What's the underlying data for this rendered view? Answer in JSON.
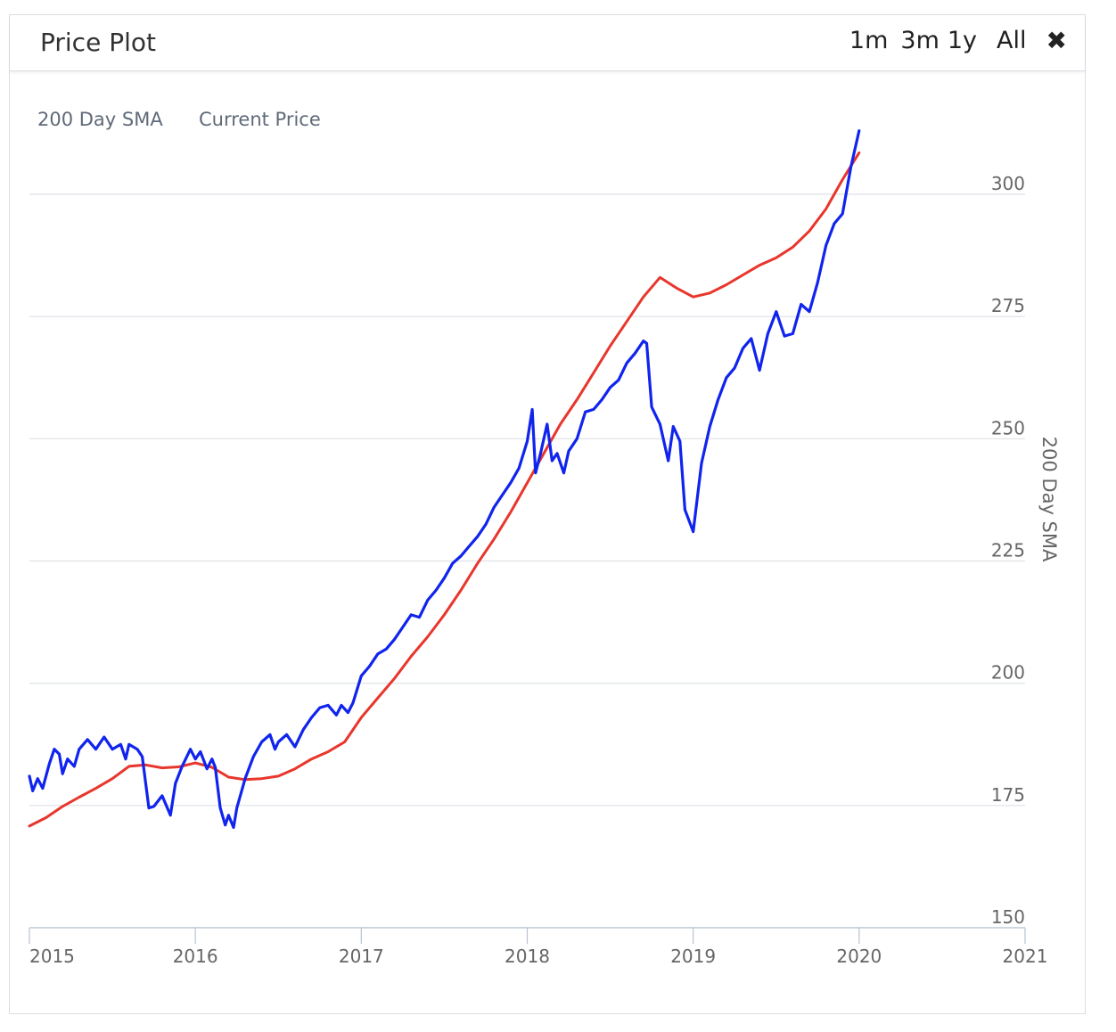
{
  "header": {
    "title": "Price Plot",
    "ranges": [
      "1m",
      "3m",
      "1y",
      "All"
    ],
    "close_icon": "close-icon"
  },
  "chart_data": {
    "type": "line",
    "xlim": [
      2015,
      2021
    ],
    "ylim": [
      150,
      315
    ],
    "y_ticks": [
      "150",
      "175",
      "200",
      "225",
      "250",
      "275",
      "300"
    ],
    "x_ticks": [
      "2015",
      "2016",
      "2017",
      "2018",
      "2019",
      "2020",
      "2021"
    ],
    "ylabel": "200 Day SMA",
    "legend_placement": "top-left",
    "grid": true,
    "series": [
      {
        "name": "200 Day SMA",
        "color": "#e8362c",
        "points": [
          [
            2015.0,
            170.8
          ],
          [
            2015.1,
            172.5
          ],
          [
            2015.2,
            174.8
          ],
          [
            2015.3,
            176.7
          ],
          [
            2015.4,
            178.5
          ],
          [
            2015.5,
            180.5
          ],
          [
            2015.6,
            183.0
          ],
          [
            2015.7,
            183.3
          ],
          [
            2015.8,
            182.7
          ],
          [
            2015.9,
            182.9
          ],
          [
            2016.0,
            183.7
          ],
          [
            2016.1,
            182.8
          ],
          [
            2016.2,
            180.8
          ],
          [
            2016.3,
            180.3
          ],
          [
            2016.4,
            180.5
          ],
          [
            2016.5,
            181.0
          ],
          [
            2016.6,
            182.5
          ],
          [
            2016.7,
            184.5
          ],
          [
            2016.8,
            186.0
          ],
          [
            2016.9,
            188.0
          ],
          [
            2017.0,
            193.0
          ],
          [
            2017.1,
            197.0
          ],
          [
            2017.2,
            201.0
          ],
          [
            2017.3,
            205.5
          ],
          [
            2017.4,
            209.5
          ],
          [
            2017.5,
            214.0
          ],
          [
            2017.6,
            219.0
          ],
          [
            2017.7,
            224.5
          ],
          [
            2017.8,
            229.5
          ],
          [
            2017.9,
            235.0
          ],
          [
            2018.0,
            241.0
          ],
          [
            2018.1,
            247.0
          ],
          [
            2018.2,
            253.0
          ],
          [
            2018.3,
            258.0
          ],
          [
            2018.4,
            263.5
          ],
          [
            2018.5,
            269.0
          ],
          [
            2018.6,
            274.0
          ],
          [
            2018.7,
            279.0
          ],
          [
            2018.8,
            283.0
          ],
          [
            2018.9,
            280.8
          ],
          [
            2019.0,
            279.0
          ],
          [
            2019.1,
            279.8
          ],
          [
            2019.2,
            281.5
          ],
          [
            2019.3,
            283.5
          ],
          [
            2019.4,
            285.5
          ],
          [
            2019.5,
            287.0
          ],
          [
            2019.6,
            289.2
          ],
          [
            2019.7,
            292.5
          ],
          [
            2019.8,
            297.0
          ],
          [
            2019.9,
            303.0
          ],
          [
            2020.0,
            308.5
          ]
        ]
      },
      {
        "name": "Current Price",
        "color": "#1024ee",
        "points": [
          [
            2015.0,
            181.0
          ],
          [
            2015.02,
            178.0
          ],
          [
            2015.05,
            180.5
          ],
          [
            2015.08,
            178.5
          ],
          [
            2015.12,
            183.5
          ],
          [
            2015.15,
            186.5
          ],
          [
            2015.18,
            185.5
          ],
          [
            2015.2,
            181.5
          ],
          [
            2015.23,
            184.5
          ],
          [
            2015.27,
            183.0
          ],
          [
            2015.3,
            186.5
          ],
          [
            2015.35,
            188.5
          ],
          [
            2015.4,
            186.5
          ],
          [
            2015.45,
            189.0
          ],
          [
            2015.5,
            186.5
          ],
          [
            2015.55,
            187.5
          ],
          [
            2015.58,
            184.5
          ],
          [
            2015.6,
            187.5
          ],
          [
            2015.65,
            186.5
          ],
          [
            2015.68,
            185.0
          ],
          [
            2015.72,
            174.5
          ],
          [
            2015.75,
            174.8
          ],
          [
            2015.8,
            177.0
          ],
          [
            2015.85,
            173.0
          ],
          [
            2015.88,
            179.5
          ],
          [
            2015.92,
            183.0
          ],
          [
            2015.97,
            186.5
          ],
          [
            2016.0,
            184.5
          ],
          [
            2016.03,
            186.0
          ],
          [
            2016.07,
            182.5
          ],
          [
            2016.1,
            184.5
          ],
          [
            2016.12,
            182.8
          ],
          [
            2016.15,
            174.5
          ],
          [
            2016.18,
            171.0
          ],
          [
            2016.2,
            173.0
          ],
          [
            2016.23,
            170.5
          ],
          [
            2016.25,
            174.5
          ],
          [
            2016.3,
            180.5
          ],
          [
            2016.35,
            185.0
          ],
          [
            2016.4,
            188.0
          ],
          [
            2016.45,
            189.5
          ],
          [
            2016.48,
            186.5
          ],
          [
            2016.5,
            188.0
          ],
          [
            2016.55,
            189.5
          ],
          [
            2016.6,
            187.0
          ],
          [
            2016.65,
            190.5
          ],
          [
            2016.7,
            193.0
          ],
          [
            2016.75,
            195.0
          ],
          [
            2016.8,
            195.5
          ],
          [
            2016.85,
            193.5
          ],
          [
            2016.88,
            195.5
          ],
          [
            2016.92,
            194.0
          ],
          [
            2016.95,
            196.0
          ],
          [
            2017.0,
            201.5
          ],
          [
            2017.05,
            203.5
          ],
          [
            2017.1,
            206.0
          ],
          [
            2017.15,
            207.0
          ],
          [
            2017.2,
            209.0
          ],
          [
            2017.25,
            211.5
          ],
          [
            2017.3,
            214.0
          ],
          [
            2017.35,
            213.5
          ],
          [
            2017.4,
            217.0
          ],
          [
            2017.45,
            219.0
          ],
          [
            2017.5,
            221.5
          ],
          [
            2017.55,
            224.5
          ],
          [
            2017.6,
            226.0
          ],
          [
            2017.65,
            228.0
          ],
          [
            2017.7,
            230.0
          ],
          [
            2017.75,
            232.5
          ],
          [
            2017.8,
            236.0
          ],
          [
            2017.85,
            238.5
          ],
          [
            2017.9,
            241.0
          ],
          [
            2017.95,
            244.0
          ],
          [
            2018.0,
            249.5
          ],
          [
            2018.03,
            256.0
          ],
          [
            2018.05,
            243.0
          ],
          [
            2018.08,
            247.0
          ],
          [
            2018.12,
            253.0
          ],
          [
            2018.15,
            245.5
          ],
          [
            2018.18,
            247.0
          ],
          [
            2018.22,
            243.0
          ],
          [
            2018.25,
            247.5
          ],
          [
            2018.3,
            250.0
          ],
          [
            2018.35,
            255.5
          ],
          [
            2018.4,
            256.0
          ],
          [
            2018.45,
            258.0
          ],
          [
            2018.5,
            260.5
          ],
          [
            2018.55,
            262.0
          ],
          [
            2018.6,
            265.5
          ],
          [
            2018.65,
            267.5
          ],
          [
            2018.7,
            270.0
          ],
          [
            2018.72,
            269.5
          ],
          [
            2018.75,
            256.5
          ],
          [
            2018.8,
            253.0
          ],
          [
            2018.85,
            245.5
          ],
          [
            2018.88,
            252.5
          ],
          [
            2018.92,
            249.5
          ],
          [
            2018.95,
            235.5
          ],
          [
            2019.0,
            231.0
          ],
          [
            2019.05,
            245.0
          ],
          [
            2019.1,
            252.5
          ],
          [
            2019.15,
            258.0
          ],
          [
            2019.2,
            262.5
          ],
          [
            2019.25,
            264.5
          ],
          [
            2019.3,
            268.5
          ],
          [
            2019.35,
            270.5
          ],
          [
            2019.4,
            264.0
          ],
          [
            2019.45,
            271.5
          ],
          [
            2019.5,
            276.0
          ],
          [
            2019.55,
            271.0
          ],
          [
            2019.6,
            271.5
          ],
          [
            2019.65,
            277.5
          ],
          [
            2019.7,
            276.0
          ],
          [
            2019.75,
            282.0
          ],
          [
            2019.8,
            289.5
          ],
          [
            2019.85,
            294.0
          ],
          [
            2019.9,
            296.0
          ],
          [
            2019.95,
            305.5
          ],
          [
            2020.0,
            313.0
          ]
        ]
      }
    ]
  }
}
